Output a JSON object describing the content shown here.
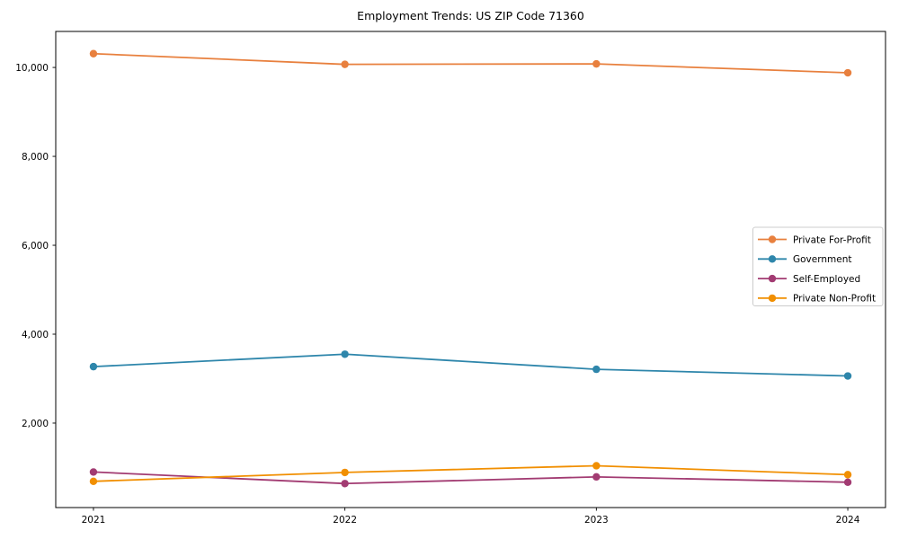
{
  "figure": {
    "title": "Employment Trends: US ZIP Code 71360"
  },
  "chart_data": {
    "type": "line",
    "title": "Employment Trends: US ZIP Code 71360",
    "categories": [
      "2021",
      "2022",
      "2023",
      "2024"
    ],
    "series": [
      {
        "name": "Private For-Profit",
        "color": "#E8803E",
        "values": [
          10310,
          10070,
          10080,
          9880
        ]
      },
      {
        "name": "Government",
        "color": "#2E86AB",
        "values": [
          3270,
          3550,
          3210,
          3060
        ]
      },
      {
        "name": "Self-Employed",
        "color": "#A23B72",
        "values": [
          900,
          640,
          790,
          670
        ]
      },
      {
        "name": "Private Non-Profit",
        "color": "#F18F01",
        "values": [
          690,
          890,
          1040,
          840
        ]
      }
    ],
    "xlabel": "",
    "ylabel": "",
    "y_ticks": [
      2000,
      4000,
      6000,
      8000,
      10000
    ],
    "y_tick_labels": [
      "2,000",
      "4,000",
      "6,000",
      "8,000",
      "10,000"
    ],
    "ylim": [
      100,
      10810
    ],
    "xlim": [
      -0.15,
      3.15
    ],
    "grid": false,
    "marker": "o",
    "legend_position": "center right"
  }
}
